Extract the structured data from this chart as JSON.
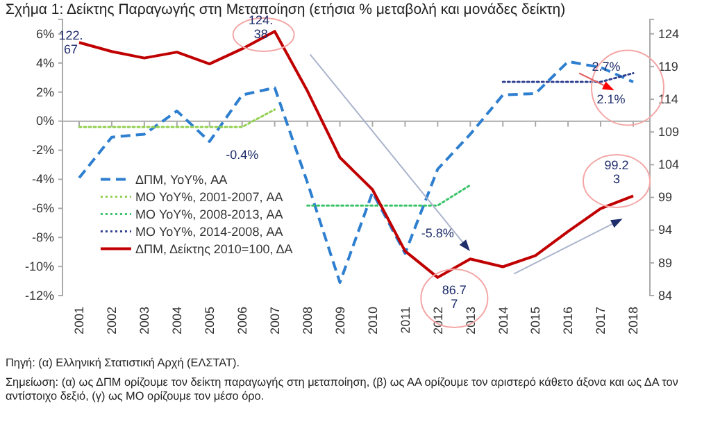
{
  "chart_data": {
    "type": "line",
    "title": "Σχήμα 1: Δείκτης Παραγωγής στη Μεταποίηση (ετήσια % μεταβολή και μονάδες δείκτη)",
    "categories": [
      "2001",
      "2002",
      "2003",
      "2004",
      "2005",
      "2006",
      "2007",
      "2008",
      "2009",
      "2010",
      "2011",
      "2012",
      "2013",
      "2014",
      "2015",
      "2016",
      "2017",
      "2018"
    ],
    "series": [
      {
        "name": "ΔΠΜ, YoY%, ΑΑ",
        "color": "#2e7fd0",
        "line_style": "dashed",
        "values": [
          -3.9,
          -1.1,
          -0.9,
          0.7,
          -1.4,
          1.8,
          2.3,
          -4.2,
          -11.1,
          -4.9,
          -9.1,
          -3.3,
          -0.9,
          1.8,
          1.9,
          4.1,
          3.7,
          2.7
        ]
      },
      {
        "name": "ΜΟ YoY%, 2001-2007, ΑΑ",
        "color": "#92d050",
        "line_style": "dotted",
        "values": [
          -0.4,
          -0.4,
          -0.4,
          -0.4,
          -0.4,
          -0.4,
          0.8,
          null,
          null,
          null,
          null,
          null,
          null,
          null,
          null,
          null,
          null,
          null
        ],
        "value_labels": [
          null,
          null,
          null,
          null,
          null,
          "-0.4%",
          null,
          null,
          null,
          null,
          null,
          null,
          null,
          null,
          null,
          null,
          null,
          null
        ]
      },
      {
        "name": "ΜΟ YoY%, 2008-2013, ΑΑ",
        "color": "#3cc36a",
        "line_style": "dotted",
        "values": [
          null,
          null,
          null,
          null,
          null,
          null,
          null,
          -5.8,
          -5.8,
          -5.8,
          -5.8,
          -5.8,
          -4.4,
          null,
          null,
          null,
          null,
          null
        ],
        "value_labels": [
          null,
          null,
          null,
          null,
          null,
          null,
          null,
          null,
          null,
          null,
          null,
          "-5.8%",
          null,
          null,
          null,
          null,
          null,
          null
        ]
      },
      {
        "name": "ΜΟ YoY%, 2014-2008, ΑΑ",
        "color": "#2f3f8f",
        "line_style": "dotted",
        "values": [
          null,
          null,
          null,
          null,
          null,
          null,
          null,
          null,
          null,
          null,
          null,
          null,
          null,
          2.7,
          2.7,
          2.7,
          2.7,
          3.3
        ],
        "value_labels": [
          null,
          null,
          null,
          null,
          null,
          null,
          null,
          null,
          null,
          null,
          null,
          null,
          null,
          null,
          null,
          null,
          "2.7%",
          null
        ]
      },
      {
        "name": "ΔΠΜ, Δείκτης 2010=100, ΔΑ",
        "color": "#c00000",
        "line_style": "solid",
        "axis": "y2",
        "values": [
          122.67,
          121.3,
          120.3,
          121.2,
          119.4,
          121.7,
          124.38,
          115.3,
          105.1,
          100.2,
          90.8,
          86.77,
          89.6,
          88.4,
          90.1,
          93.8,
          97.3,
          99.23
        ],
        "value_labels": [
          "122.67",
          null,
          null,
          null,
          null,
          null,
          "124.38",
          null,
          null,
          null,
          null,
          "86.77",
          null,
          null,
          null,
          null,
          null,
          "99.23"
        ]
      }
    ],
    "ylim": [
      -12,
      7
    ],
    "yticks": [
      {
        "value": -12,
        "label": "-12%"
      },
      {
        "value": -10,
        "label": "-10%"
      },
      {
        "value": -8,
        "label": "-8%"
      },
      {
        "value": -6,
        "label": "-6%"
      },
      {
        "value": -4,
        "label": "-4%"
      },
      {
        "value": -2,
        "label": "-2%"
      },
      {
        "value": 0,
        "label": "0%"
      },
      {
        "value": 2,
        "label": "2%"
      },
      {
        "value": 4,
        "label": "4%"
      },
      {
        "value": 6,
        "label": "6%"
      }
    ],
    "y2lim": [
      84,
      126.2
    ],
    "y2ticks": [
      84,
      89,
      94,
      99,
      104,
      109,
      114,
      119,
      124
    ],
    "legend": "left",
    "annotations": [
      "2.1%",
      "Πηγή: (α) Ελληνική Στατιστική Αρχή (ΕΛΣΤΑΤ).",
      "Σημείωση: (α) ως ΔΠΜ ορίζουμε τον δείκτη παραγωγής στη μεταποίηση, (β) ως ΑΑ ορίζουμε τον αριστερό κάθετο άξονα και ως ΔΑ τον αντίστοιχο δεξιό, (γ) ως ΜΟ ορίζουμε τον μέσο όρο."
    ]
  }
}
